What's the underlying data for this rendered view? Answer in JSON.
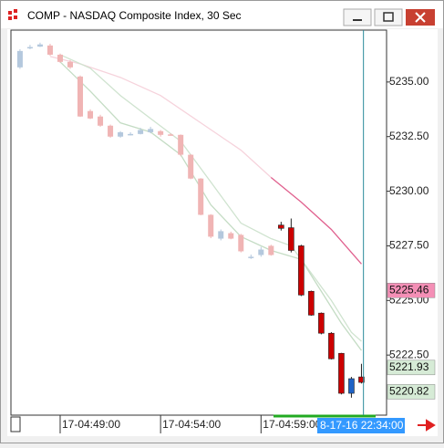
{
  "chart_data": {
    "type": "candlestick",
    "title": "COMP - NASDAQ Composite Index, 30 Sec",
    "open": [
      5235.67,
      5236.55,
      5236.62,
      5236.67,
      5236.25,
      5235.92,
      5235.25,
      5233.67,
      5233.42,
      5233.0,
      5232.5,
      5232.6,
      5232.62,
      5232.7,
      5232.75,
      5232.6,
      5232.58,
      5231.67,
      5230.58,
      5228.92,
      5227.83,
      5228.08,
      5228.0,
      5227.0,
      5227.08,
      5227.5,
      5228.45,
      5228.33,
      5227.5,
      5225.42,
      5224.42,
      5223.5,
      5222.58,
      5220.75,
      5221.5
    ],
    "high": [
      5236.5,
      5236.7,
      5236.8,
      5236.75,
      5236.3,
      5236.0,
      5235.3,
      5233.75,
      5233.5,
      5233.05,
      5232.75,
      5232.7,
      5232.9,
      5232.95,
      5232.8,
      5232.65,
      5232.6,
      5231.7,
      5230.6,
      5228.95,
      5228.25,
      5228.15,
      5228.05,
      5227.1,
      5227.45,
      5227.55,
      5228.6,
      5228.75,
      5227.55,
      5225.45,
      5224.45,
      5223.55,
      5222.6,
      5221.5,
      5222.1
    ],
    "low": [
      5235.6,
      5236.5,
      5236.6,
      5236.2,
      5235.88,
      5235.6,
      5233.4,
      5233.3,
      5232.95,
      5232.45,
      5232.45,
      5232.55,
      5232.6,
      5232.65,
      5232.5,
      5232.55,
      5231.6,
      5230.55,
      5228.9,
      5227.85,
      5227.75,
      5227.8,
      5227.2,
      5226.9,
      5227.0,
      5227.05,
      5228.2,
      5227.2,
      5225.2,
      5224.3,
      5223.45,
      5222.3,
      5220.7,
      5220.55,
      5221.2
    ],
    "close": [
      5236.42,
      5236.6,
      5236.72,
      5236.25,
      5235.92,
      5235.67,
      5233.42,
      5233.33,
      5233.0,
      5232.5,
      5232.7,
      5232.62,
      5232.8,
      5232.85,
      5232.58,
      5232.58,
      5231.67,
      5230.58,
      5228.92,
      5227.92,
      5228.17,
      5227.83,
      5227.25,
      5227.0,
      5227.33,
      5227.08,
      5228.3,
      5227.29,
      5225.25,
      5224.33,
      5223.5,
      5222.33,
      5220.75,
      5221.42,
      5221.25
    ],
    "colors": [
      "#b4c8dd",
      "#b4c8dd",
      "#b4c8dd",
      "#f0b4b4",
      "#f0b4b4",
      "#f0b4b4",
      "#f0b4b4",
      "#f0b4b4",
      "#f0b4b4",
      "#f0b4b4",
      "#b4c8dd",
      "#b4c8dd",
      "#b4c8dd",
      "#b4c8dd",
      "#f0b4b4",
      "#f0b4b4",
      "#f0b4b4",
      "#f0b4b4",
      "#f0b4b4",
      "#f0b4b4",
      "#b4c8dd",
      "#f0b4b4",
      "#f0b4b4",
      "#b4c8dd",
      "#b4c8dd",
      "#f0b4b4",
      "#cc0000",
      "#cc0000",
      "#cc0000",
      "#cc0000",
      "#cc0000",
      "#cc0000",
      "#cc0000",
      "#1f63c6",
      "#cc0000"
    ],
    "lines": [
      {
        "color": "#f6d3dc",
        "x": [
          3,
          6,
          10,
          14,
          18,
          22,
          25
        ],
        "values": [
          5236.17,
          5235.83,
          5235.21,
          5234.38,
          5233.13,
          5231.88,
          5230.63
        ]
      },
      {
        "color": "#e0608e",
        "x": [
          25,
          28,
          31,
          34
        ],
        "values": [
          5230.63,
          5229.5,
          5228.25,
          5226.67
        ]
      },
      {
        "color": "#cfe3cf",
        "x": [
          4,
          7,
          10,
          13,
          16,
          19,
          22,
          25,
          27,
          29,
          31,
          33,
          34
        ],
        "values": [
          5236.25,
          5235.63,
          5234.38,
          5233.33,
          5232.29,
          5230.42,
          5228.54,
          5227.83,
          5227.5,
          5226.25,
          5225.0,
          5223.54,
          5223.13
        ]
      },
      {
        "color": "#c4dcc4",
        "x": [
          4,
          7,
          10,
          13,
          16,
          19,
          22,
          25,
          28,
          30,
          32,
          34
        ],
        "values": [
          5235.92,
          5234.58,
          5233.13,
          5232.71,
          5231.67,
          5229.38,
          5227.92,
          5227.29,
          5226.88,
          5225.42,
          5223.96,
          5222.71
        ]
      }
    ],
    "price_markers": [
      {
        "value": 5225.46,
        "color": "#f48fb6"
      },
      {
        "value": 5221.93,
        "color": "#d6ebd6"
      },
      {
        "value": 5220.82,
        "color": "#d6ebd6"
      }
    ],
    "cursor": {
      "value": 34.2,
      "label": "8-17-16 22:34:00"
    },
    "xlim": [
      -0.9,
      36.5
    ],
    "ylim": [
      5219.75,
      5237.375
    ],
    "yticks": [
      {
        "value": 5222.5,
        "label": "5222.50"
      },
      {
        "value": 5225,
        "label": "5225.00"
      },
      {
        "value": 5227.5,
        "label": "5227.50"
      },
      {
        "value": 5230,
        "label": "5230.00"
      },
      {
        "value": 5232.5,
        "label": "5232.50"
      },
      {
        "value": 5235,
        "label": "5235.00"
      }
    ],
    "xticks": [
      {
        "value": 4,
        "label": "17-04:49:00"
      },
      {
        "value": 14,
        "label": "17-04:54:00"
      },
      {
        "value": 24,
        "label": "17-04:59:00"
      }
    ]
  }
}
